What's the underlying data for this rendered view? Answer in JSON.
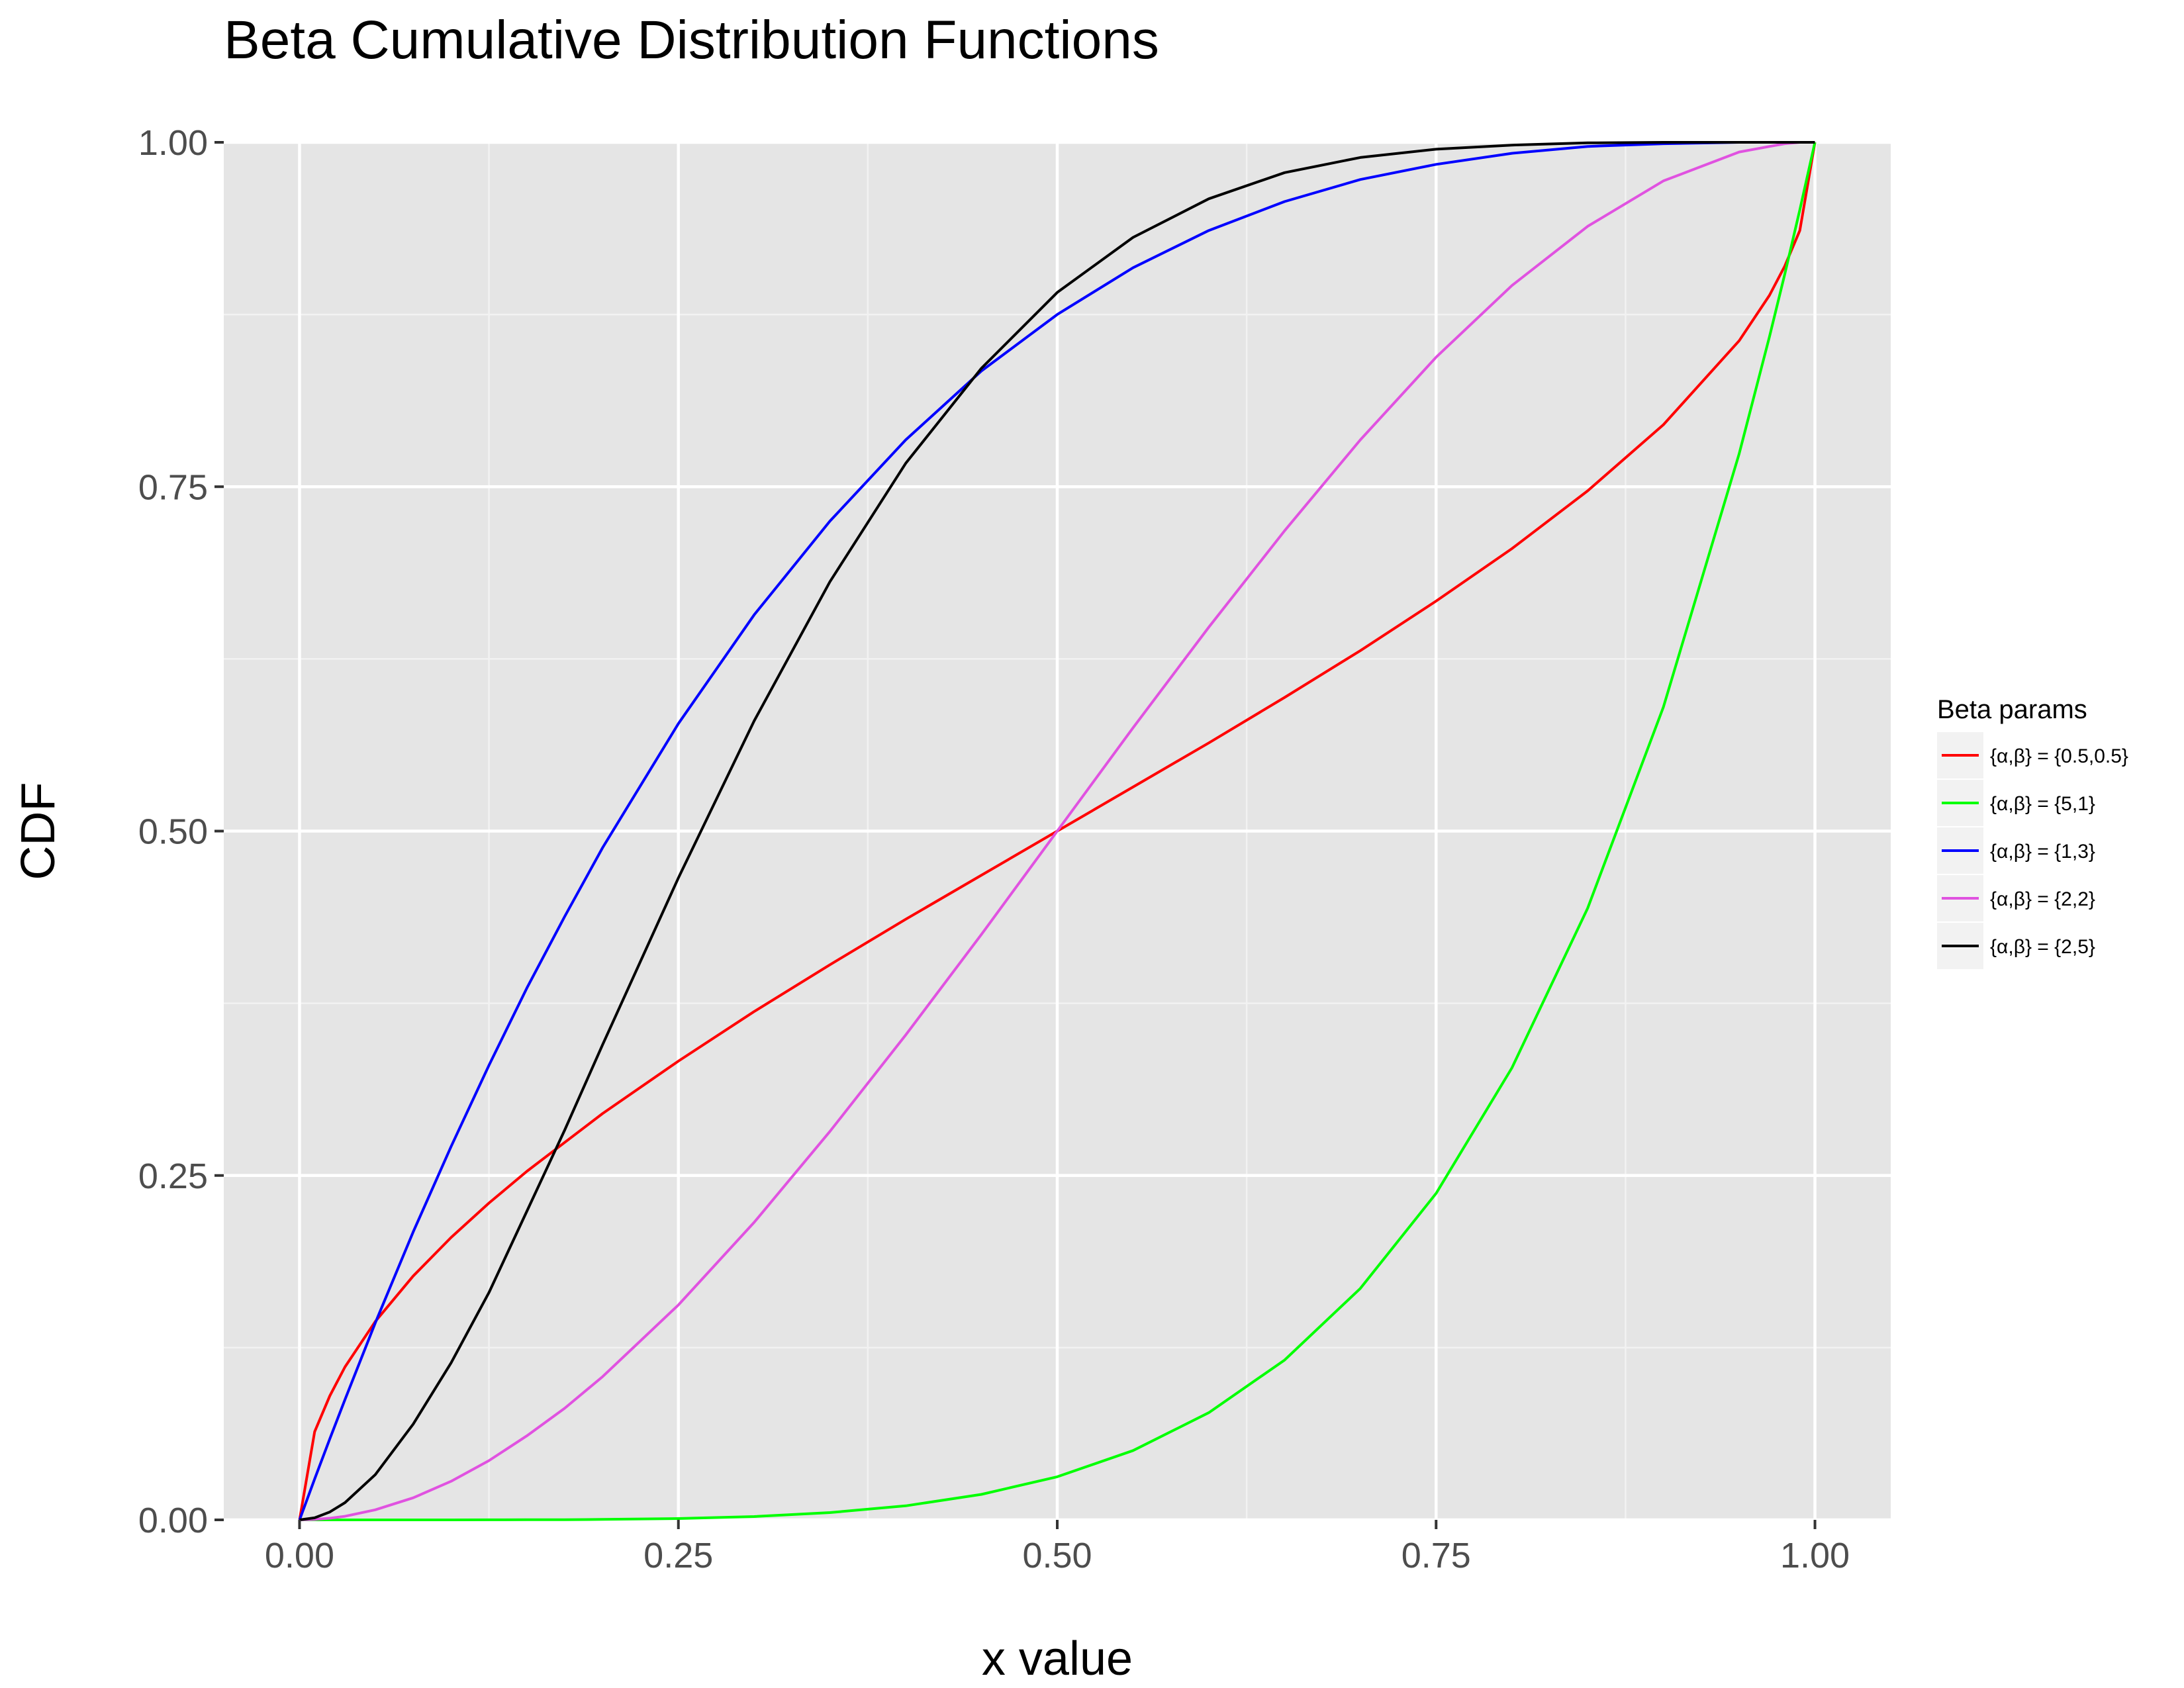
{
  "chart_data": {
    "type": "line",
    "title": "Beta Cumulative Distribution Functions",
    "xlabel": "x value",
    "ylabel": "CDF",
    "xlim": [
      -0.05,
      1.05
    ],
    "ylim": [
      0,
      1
    ],
    "x_ticks": [
      "0.00",
      "0.25",
      "0.50",
      "0.75",
      "1.00"
    ],
    "y_ticks": [
      "0.00",
      "0.25",
      "0.50",
      "0.75",
      "1.00"
    ],
    "grid": true,
    "legend": {
      "title": "Beta params",
      "position": "right"
    },
    "x": [
      0,
      0.01,
      0.02,
      0.03,
      0.05,
      0.075,
      0.1,
      0.125,
      0.15,
      0.175,
      0.2,
      0.25,
      0.3,
      0.35,
      0.4,
      0.45,
      0.5,
      0.55,
      0.6,
      0.65,
      0.7,
      0.75,
      0.8,
      0.85,
      0.9,
      0.95,
      0.97,
      0.98,
      0.99,
      1.0
    ],
    "series": [
      {
        "name": "{α,β} = {0.5,0.5}",
        "color": "#ff0000",
        "values": [
          0,
          0.064,
          0.09,
          0.111,
          0.144,
          0.177,
          0.205,
          0.23,
          0.253,
          0.274,
          0.295,
          0.333,
          0.369,
          0.403,
          0.436,
          0.468,
          0.5,
          0.532,
          0.564,
          0.597,
          0.631,
          0.667,
          0.705,
          0.747,
          0.795,
          0.856,
          0.889,
          0.91,
          0.936,
          1.0
        ]
      },
      {
        "name": "{α,β} = {5,1}",
        "color": "#00ff00",
        "values": [
          0,
          0.0,
          0.0,
          0.0,
          0.0,
          0.0,
          1e-05,
          3e-05,
          8e-05,
          0.00016,
          0.00032,
          0.00098,
          0.0024,
          0.0053,
          0.0102,
          0.0185,
          0.0313,
          0.0503,
          0.0778,
          0.116,
          0.168,
          0.237,
          0.328,
          0.444,
          0.59,
          0.774,
          0.859,
          0.904,
          0.951,
          1.0
        ]
      },
      {
        "name": "{α,β} = {1,3}",
        "color": "#0000ff",
        "values": [
          0,
          0.0297,
          0.0588,
          0.0873,
          0.143,
          0.209,
          0.271,
          0.33,
          0.386,
          0.438,
          0.488,
          0.578,
          0.657,
          0.725,
          0.784,
          0.834,
          0.875,
          0.909,
          0.936,
          0.957,
          0.973,
          0.984,
          0.992,
          0.997,
          0.999,
          1.0,
          1.0,
          1.0,
          1.0,
          1.0
        ]
      },
      {
        "name": "{α,β} = {2,2}",
        "color": "#e052e0",
        "values": [
          0,
          0.0003,
          0.0012,
          0.0026,
          0.0073,
          0.016,
          0.028,
          0.043,
          0.061,
          0.081,
          0.104,
          0.156,
          0.216,
          0.282,
          0.352,
          0.425,
          0.5,
          0.575,
          0.648,
          0.718,
          0.784,
          0.844,
          0.896,
          0.939,
          0.972,
          0.993,
          0.997,
          0.999,
          1.0,
          1.0
        ]
      },
      {
        "name": "{α,β} = {2,5}",
        "color": "#000000",
        "values": [
          0,
          0.0015,
          0.0057,
          0.0125,
          0.0328,
          0.0695,
          0.114,
          0.165,
          0.224,
          0.283,
          0.345,
          0.466,
          0.58,
          0.681,
          0.767,
          0.836,
          0.891,
          0.931,
          0.959,
          0.978,
          0.989,
          0.995,
          0.998,
          0.9996,
          1.0,
          1.0,
          1.0,
          1.0,
          1.0,
          1.0
        ]
      }
    ]
  }
}
